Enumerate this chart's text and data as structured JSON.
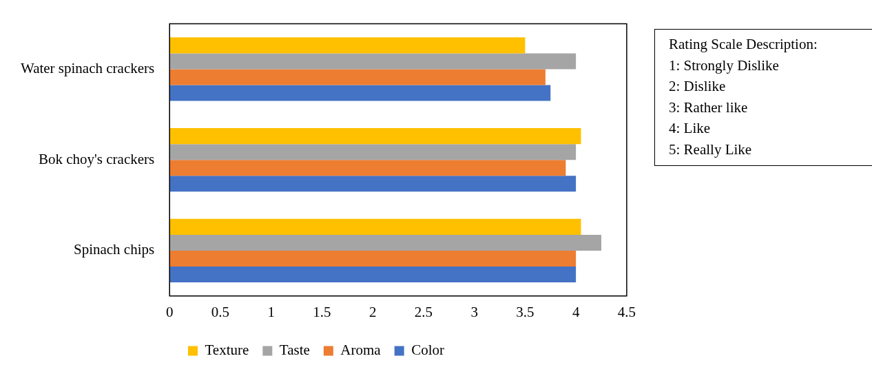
{
  "chart_data": {
    "type": "bar",
    "orientation": "horizontal",
    "categories": [
      "Water spinach crackers",
      "Bok choy's crackers",
      "Spinach chips"
    ],
    "series": [
      {
        "name": "Texture",
        "color": "#ffc000",
        "values": [
          3.5,
          4.05,
          4.05
        ]
      },
      {
        "name": "Taste",
        "color": "#a5a5a5",
        "values": [
          4.0,
          4.0,
          4.25
        ]
      },
      {
        "name": "Aroma",
        "color": "#ed7d31",
        "values": [
          3.7,
          3.9,
          4.0
        ]
      },
      {
        "name": "Color",
        "color": "#4472c4",
        "values": [
          3.75,
          4.0,
          4.0
        ]
      }
    ],
    "xlim": [
      0,
      4.5
    ],
    "xticks": [
      0,
      0.5,
      1,
      1.5,
      2,
      2.5,
      3,
      3.5,
      4,
      4.5
    ],
    "grid": false,
    "legend": "bottom",
    "annotations": [
      "Rating Scale Description:",
      "1: Strongly Dislike",
      "2: Dislike",
      "3: Rather like",
      "4: Like",
      "5: Really Like"
    ]
  }
}
